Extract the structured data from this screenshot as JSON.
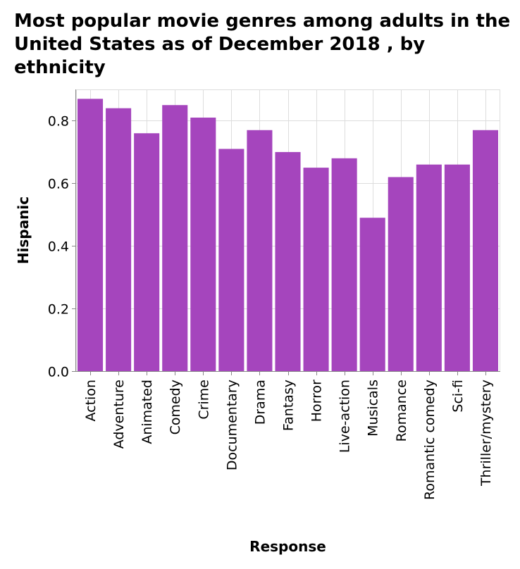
{
  "chart_data": {
    "type": "bar",
    "title": "Most popular movie genres among adults in the United States as of December 2018 , by ethnicity",
    "xlabel": "Response",
    "ylabel": "Hispanic",
    "categories": [
      "Action",
      "Adventure",
      "Animated",
      "Comedy",
      "Crime",
      "Documentary",
      "Drama",
      "Fantasy",
      "Horror",
      "Live-action",
      "Musicals",
      "Romance",
      "Romantic comedy",
      "Sci-fi",
      "Thriller/mystery"
    ],
    "values": [
      0.87,
      0.84,
      0.76,
      0.85,
      0.81,
      0.71,
      0.77,
      0.7,
      0.65,
      0.68,
      0.49,
      0.62,
      0.66,
      0.66,
      0.77
    ],
    "ylim": [
      0,
      0.9
    ],
    "yticks": [
      0.0,
      0.2,
      0.4,
      0.6,
      0.8
    ],
    "ytick_labels": [
      "0.0",
      "0.2",
      "0.4",
      "0.6",
      "0.8"
    ],
    "grid": true,
    "bar_color": "#a545bd"
  }
}
